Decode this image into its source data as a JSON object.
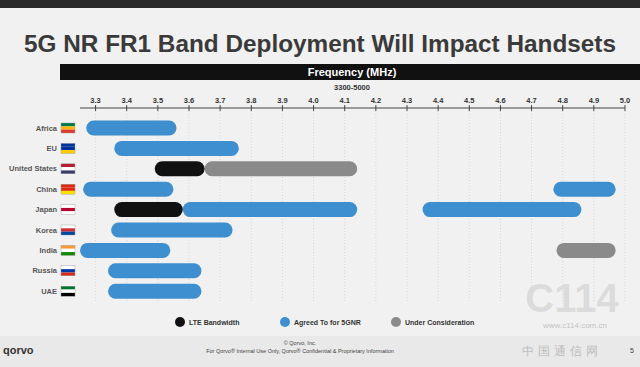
{
  "chart_data": {
    "type": "range",
    "title": "5G NR FR1 Band Deployment Will Impact Handsets",
    "x_label": "Frequency (MHz)",
    "subtitle": "3300-5000",
    "orientation": "horizontal",
    "categories": [
      "Africa",
      "EU",
      "United States",
      "China",
      "Japan",
      "Korea",
      "India",
      "Russia",
      "UAE"
    ],
    "series": [
      {
        "name": "LTE Bandwidth",
        "color": "#111111",
        "values": [
          null,
          null,
          [
            [
              3.49,
              3.65
            ]
          ],
          null,
          [
            [
              3.36,
              3.58
            ]
          ],
          null,
          null,
          null,
          null
        ]
      },
      {
        "name": "Agreed To for 5GNR",
        "color": "#3d8fcf",
        "values": [
          [
            [
              3.27,
              3.56
            ]
          ],
          [
            [
              3.36,
              3.76
            ]
          ],
          null,
          [
            [
              3.26,
              3.55
            ],
            [
              4.77,
              4.97
            ]
          ],
          [
            [
              3.58,
              4.14
            ],
            [
              4.35,
              4.86
            ]
          ],
          [
            [
              3.35,
              3.74
            ]
          ],
          [
            [
              3.25,
              3.54
            ]
          ],
          [
            [
              3.34,
              3.64
            ]
          ],
          [
            [
              3.34,
              3.64
            ]
          ]
        ]
      },
      {
        "name": "Under Consideration",
        "color": "#8a8a8a",
        "values": [
          null,
          null,
          [
            [
              3.65,
              4.14
            ]
          ],
          null,
          null,
          null,
          [
            [
              4.78,
              4.97
            ]
          ],
          null,
          null
        ]
      }
    ],
    "xlim": [
      3.25,
      5
    ],
    "xticks": [
      3.3,
      3.4,
      3.5,
      3.6,
      3.7,
      3.8,
      3.9,
      {
        "value": 4,
        "label": "4.0"
      },
      4.1,
      4.2,
      4.3,
      4.4,
      4.5,
      4.6,
      4.7,
      4.8,
      4.9,
      {
        "value": 5,
        "label": "5.0"
      }
    ],
    "grid": true,
    "legend": "bottom"
  },
  "footer": {
    "logo": "qorvo",
    "copyright": "© Qorvo, Inc.",
    "notice": "For Qorvo® Internal Use Only, Qorvo® Confidential & Proprietary Information",
    "page": "5"
  },
  "watermark": {
    "logo": "C114",
    "url": "www.c114.com.cn",
    "name": "中 国 通 信 网"
  }
}
